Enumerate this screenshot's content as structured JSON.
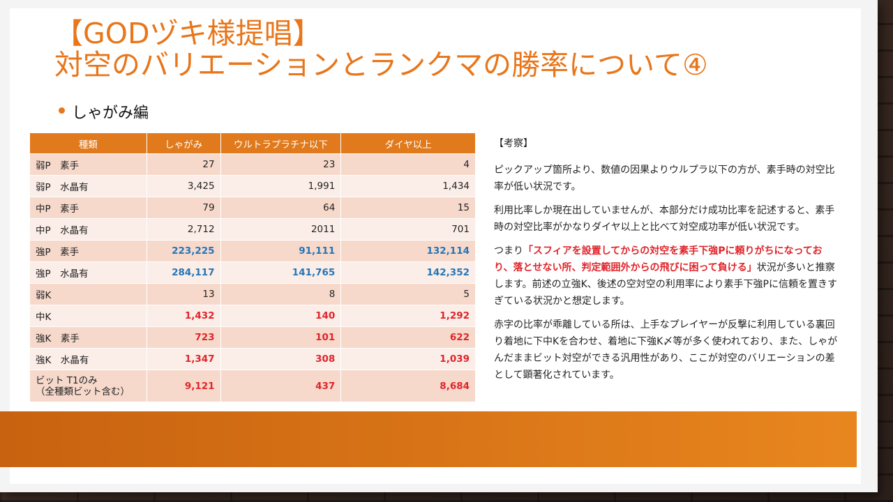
{
  "slide": {
    "title_line1": "【GODヅキ様提唱】",
    "title_line2": "対空のバリエーションとランクマの勝率について④",
    "bullet": "しゃがみ編"
  },
  "table": {
    "headers": [
      "種類",
      "しゃがみ",
      "ウルトラプラチナ以下",
      "ダイヤ以上"
    ],
    "rows": [
      {
        "label": "弱P　素手",
        "v1": "27",
        "v2": "23",
        "v3": "4",
        "style": ""
      },
      {
        "label": "弱P　水晶有",
        "v1": "3,425",
        "v2": "1,991",
        "v3": "1,434",
        "style": ""
      },
      {
        "label": "中P　素手",
        "v1": "79",
        "v2": "64",
        "v3": "15",
        "style": ""
      },
      {
        "label": "中P　水晶有",
        "v1": "2,712",
        "v2": "2011",
        "v3": "701",
        "style": ""
      },
      {
        "label": "強P　素手",
        "v1": "223,225",
        "v2": "91,111",
        "v3": "132,114",
        "style": "blue"
      },
      {
        "label": "強P　水晶有",
        "v1": "284,117",
        "v2": "141,765",
        "v3": "142,352",
        "style": "blue"
      },
      {
        "label": "弱K",
        "v1": "13",
        "v2": "8",
        "v3": "5",
        "style": ""
      },
      {
        "label": "中K",
        "v1": "1,432",
        "v2": "140",
        "v3": "1,292",
        "style": "red"
      },
      {
        "label": "強K　素手",
        "v1": "723",
        "v2": "101",
        "v3": "622",
        "style": "red"
      },
      {
        "label": "強K　水晶有",
        "v1": "1,347",
        "v2": "308",
        "v3": "1,039",
        "style": "red"
      },
      {
        "label": "ビット T1のみ\n（全種類ビット含む）",
        "v1": "9,121",
        "v2": "437",
        "v3": "8,684",
        "style": "red"
      }
    ]
  },
  "notes": {
    "heading": "【考察】",
    "p1": "ピックアップ箇所より、数値の因果よりウルプラ以下の方が、素手時の対空比率が低い状況です。",
    "p2": "利用比率しか現在出していませんが、本部分だけ成功比率を記述すると、素手時の対空比率がかなりダイヤ以上と比べて対空成功率が低い状況です。",
    "p3_prefix": "つまり",
    "p3_highlight": "「スフィアを設置してからの対空を素手下強Pに頼りがちになっており、落とせない所、判定範囲外からの飛びに困って負ける」",
    "p3_suffix": "状況が多いと推察します。前述の立強K、後述の空対空の利用率により素手下強Pに信頼を置きすぎている状況かと想定します。",
    "p4": "赤字の比率が乖離している所は、上手なプレイヤーが反撃に利用している裏回り着地に下中Kを合わせ、着地に下強K〆等が多く使われており、また、しゃがんだままビット対空ができる汎用性があり、ここが対空のバリエーションの差として顕著化されています。"
  },
  "colors": {
    "accent": "#e8761a",
    "header_bg": "#e07a1c",
    "row_odd": "#f7d9cc",
    "row_even": "#fbede7",
    "blue": "#2375b7",
    "red": "#e0242a"
  }
}
